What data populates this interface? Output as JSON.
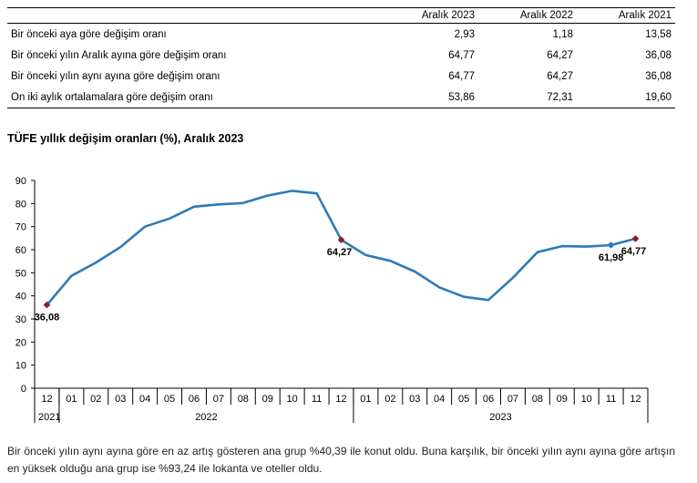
{
  "table": {
    "headers": [
      "",
      "Aralık 2023",
      "Aralık 2022",
      "Aralık 2021"
    ],
    "rows": [
      [
        "Bir önceki aya göre değişim oranı",
        "2,93",
        "1,18",
        "13,58"
      ],
      [
        "Bir önceki yılın Aralık ayına göre değişim oranı",
        "64,77",
        "64,27",
        "36,08"
      ],
      [
        "Bir önceki yılın aynı ayına göre değişim oranı",
        "64,77",
        "64,27",
        "36,08"
      ],
      [
        "On iki aylık ortalamalara göre değişim oranı",
        "53,86",
        "72,31",
        "19,60"
      ]
    ]
  },
  "chart_title": "TÜFE yıllık değişim oranları (%), Aralık 2023",
  "chart_data": {
    "type": "line",
    "title": "TÜFE yıllık değişim oranları (%), Aralık 2023",
    "xlabel": "",
    "ylabel": "",
    "ylim": [
      0,
      90
    ],
    "yticks": [
      "0",
      "10",
      "20",
      "30",
      "40",
      "50",
      "60",
      "70",
      "80",
      "90"
    ],
    "categories": [
      "12",
      "01",
      "02",
      "03",
      "04",
      "05",
      "06",
      "07",
      "08",
      "09",
      "10",
      "11",
      "12",
      "01",
      "02",
      "03",
      "04",
      "05",
      "06",
      "07",
      "08",
      "09",
      "10",
      "11",
      "12"
    ],
    "year_groups": [
      {
        "label": "2021",
        "span": 1
      },
      {
        "label": "2022",
        "span": 12
      },
      {
        "label": "2023",
        "span": 12
      }
    ],
    "values": [
      36.08,
      48.69,
      54.44,
      61.14,
      69.97,
      73.5,
      78.62,
      79.6,
      80.21,
      83.45,
      85.51,
      84.39,
      64.27,
      57.68,
      55.18,
      50.51,
      43.68,
      39.59,
      38.21,
      47.83,
      58.94,
      61.53,
      61.36,
      61.98,
      64.77
    ],
    "labels": [
      {
        "index": 0,
        "text": "36,08"
      },
      {
        "index": 12,
        "text": "64,27"
      },
      {
        "index": 23,
        "text": "61,98"
      },
      {
        "index": 24,
        "text": "64,77"
      }
    ],
    "line_color": "#2e7ab8",
    "marker_color": "#8b1a2a",
    "grid": false
  },
  "note": "Bir önceki yılın aynı ayına göre en az artış gösteren ana grup %40,39 ile konut oldu. Buna karşılık, bir önceki yılın aynı ayına göre artışın en yüksek olduğu ana grup ise %93,24 ile lokanta ve oteller oldu."
}
